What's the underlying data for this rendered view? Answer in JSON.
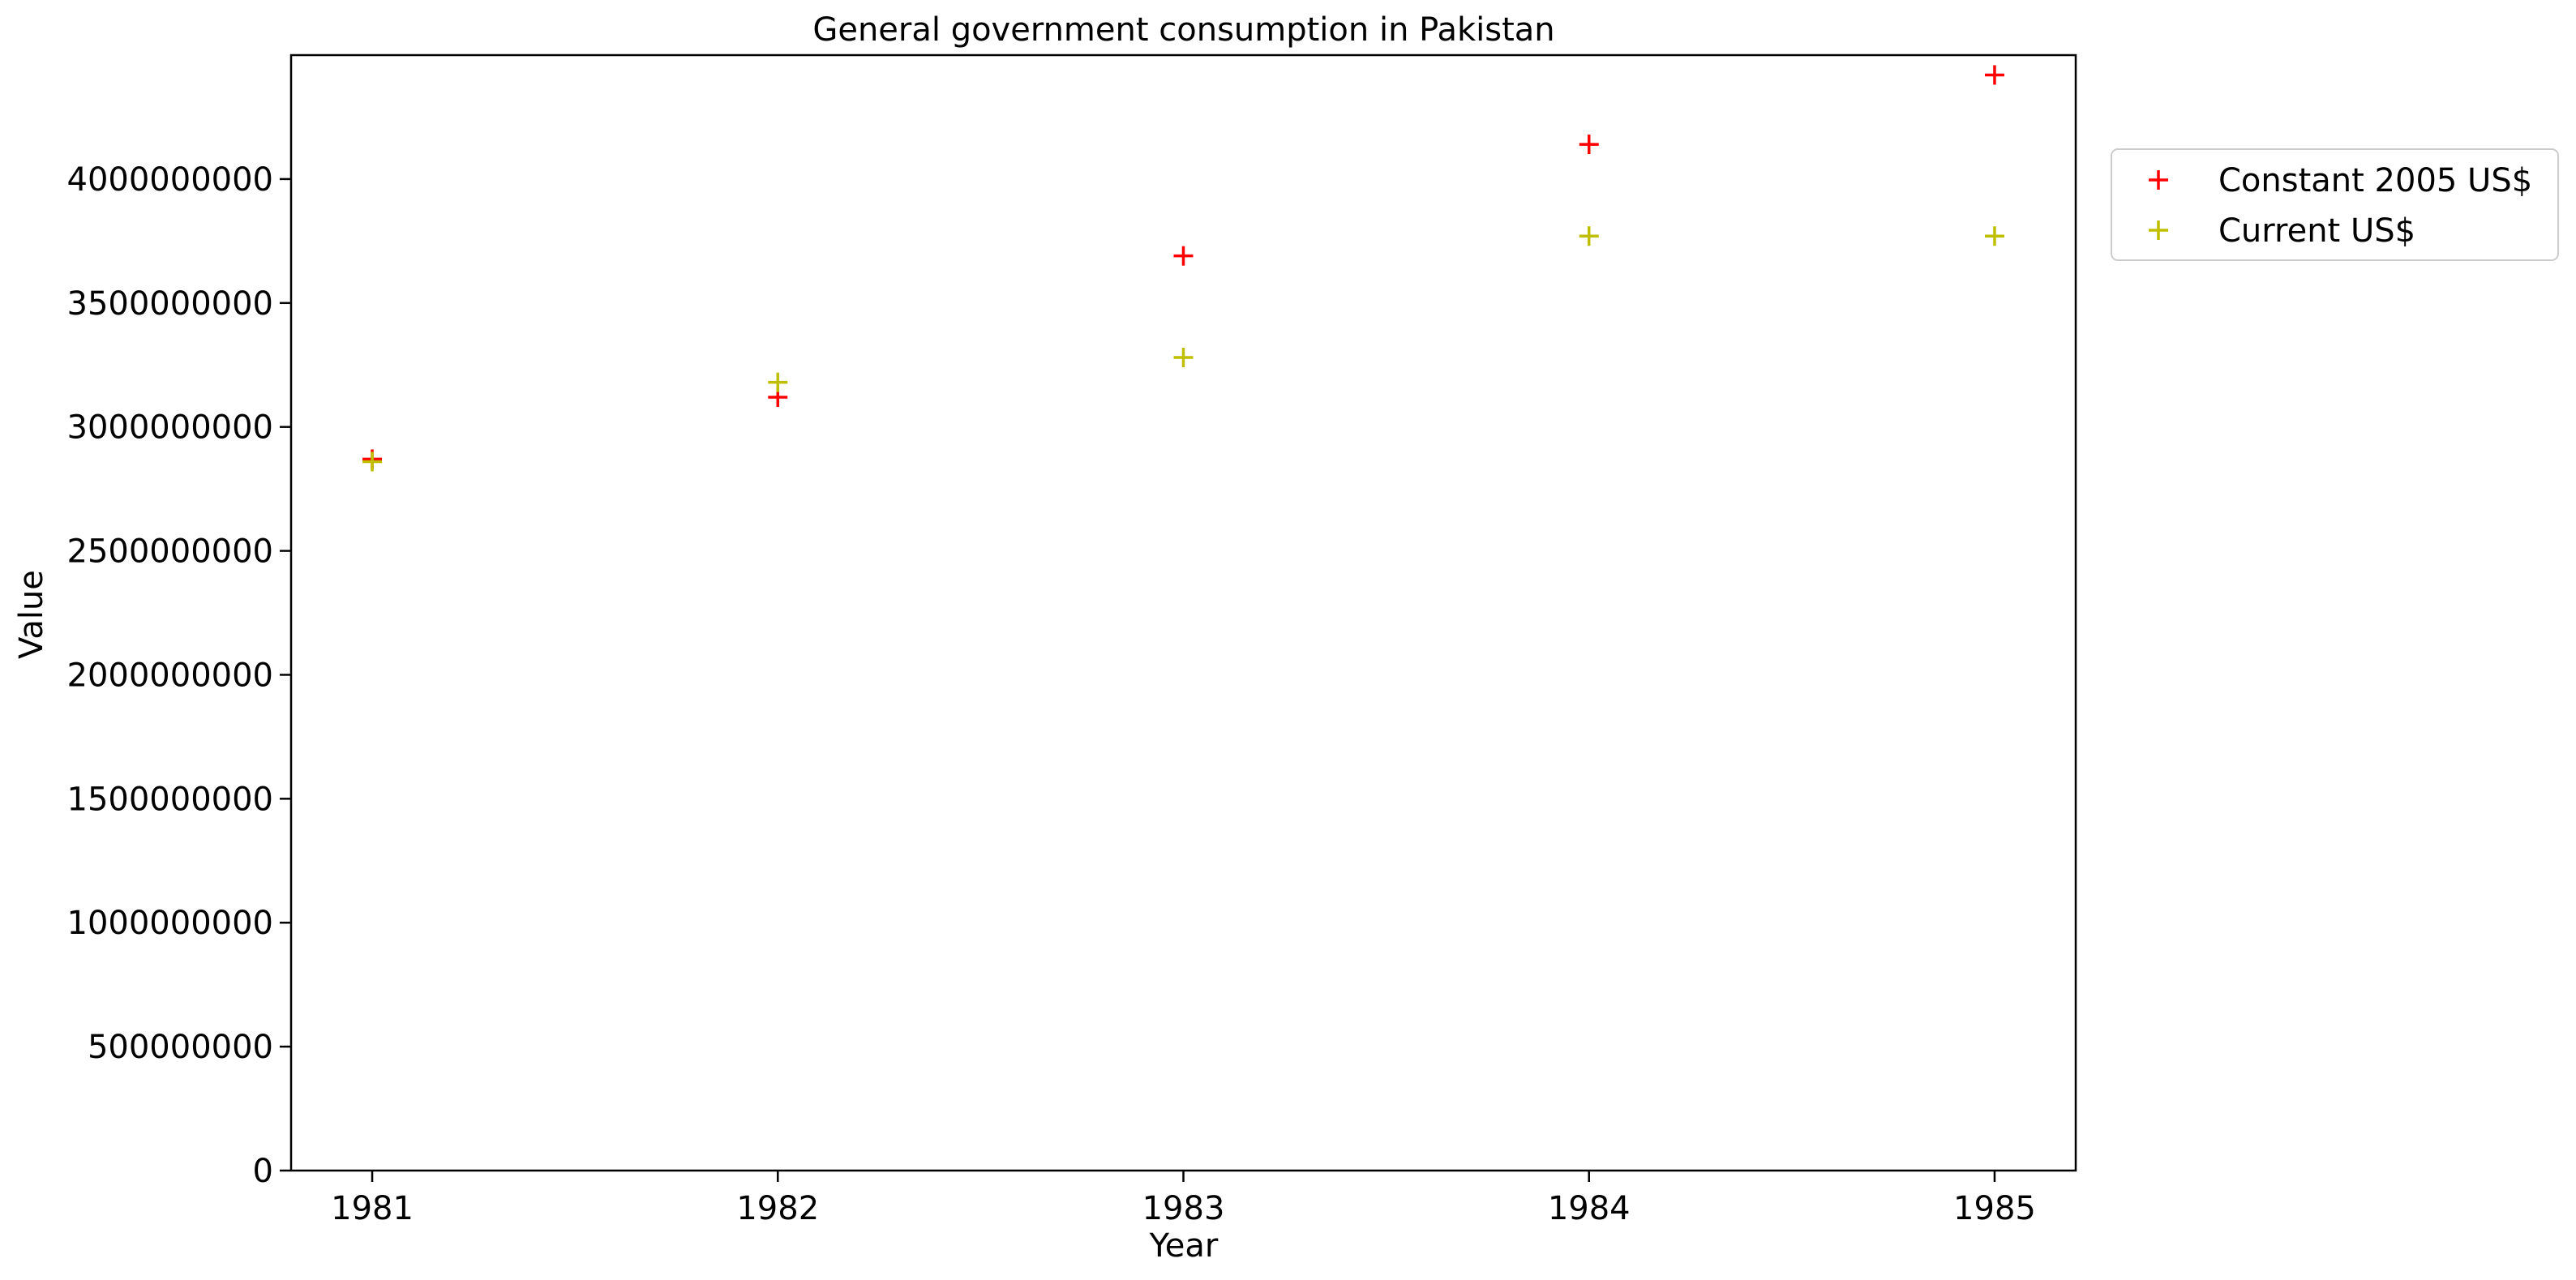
{
  "chart_data": {
    "type": "scatter",
    "title": "General government consumption in Pakistan",
    "xlabel": "Year",
    "ylabel": "Value",
    "x": [
      "1981",
      "1982",
      "1983",
      "1984",
      "1985"
    ],
    "xlim": [
      1980.8,
      1985.2
    ],
    "ylim": [
      0,
      4500000000
    ],
    "yticks": [
      0,
      500000000,
      1000000000,
      1500000000,
      2000000000,
      2500000000,
      3000000000,
      3500000000,
      4000000000
    ],
    "ytick_labels": [
      "0",
      "500000000",
      "1000000000",
      "1500000000",
      "2000000000",
      "2500000000",
      "3000000000",
      "3500000000",
      "4000000000"
    ],
    "grid": false,
    "legend_position": "outside-top-right",
    "marker": "plus",
    "series": [
      {
        "name": "Constant 2005 US$",
        "color": "#ff0000",
        "values": [
          2870000000,
          3120000000,
          3690000000,
          4140000000,
          4420000000
        ]
      },
      {
        "name": "Current US$",
        "color": "#bfbf00",
        "values": [
          2860000000,
          3180000000,
          3280000000,
          3770000000,
          3770000000
        ]
      }
    ]
  }
}
